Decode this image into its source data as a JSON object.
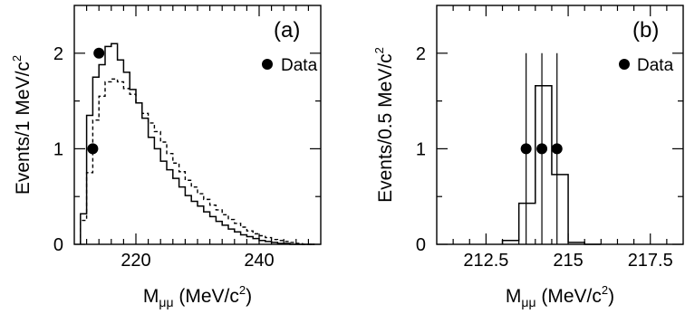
{
  "chart_data": [
    {
      "type": "histogram",
      "panel_label": "(a)",
      "xlabel_main": "M",
      "xlabel_sub": "μμ",
      "xlabel_unit": " (MeV/c",
      "xlabel_unit_sup": "2",
      "xlabel_close": ")",
      "ylabel_main": "Events/1 MeV/c",
      "ylabel_sup": "2",
      "xlim": [
        210,
        250
      ],
      "ylim": [
        0,
        2.5
      ],
      "xticks_major": [
        220,
        240
      ],
      "xticks_minor": [
        212,
        214,
        216,
        218,
        222,
        224,
        226,
        228,
        230,
        232,
        234,
        236,
        238,
        242,
        244,
        246,
        248
      ],
      "yticks_major": [
        0,
        1,
        2
      ],
      "yticks_minor": [
        0.5,
        1.5
      ],
      "legend": "Data",
      "bin_edges": [
        211,
        212,
        213,
        214,
        215,
        216,
        217,
        218,
        219,
        220,
        221,
        222,
        223,
        224,
        225,
        226,
        227,
        228,
        229,
        230,
        231,
        232,
        233,
        234,
        235,
        236,
        237,
        238,
        239,
        240,
        241,
        242,
        243,
        244,
        245,
        246,
        247,
        248,
        249
      ],
      "series": [
        {
          "style": "solid",
          "values": [
            0.32,
            1.35,
            1.75,
            1.88,
            2.07,
            2.1,
            1.93,
            1.8,
            1.62,
            1.48,
            1.32,
            1.12,
            1.0,
            0.87,
            0.78,
            0.69,
            0.6,
            0.51,
            0.45,
            0.4,
            0.34,
            0.29,
            0.24,
            0.2,
            0.16,
            0.13,
            0.1,
            0.08,
            0.06,
            0.04,
            0.03,
            0.02,
            0.01,
            0.01,
            0.0,
            0.0,
            0.0,
            0.0
          ]
        },
        {
          "style": "dashed",
          "values": [
            0.25,
            0.75,
            1.3,
            1.55,
            1.7,
            1.73,
            1.7,
            1.63,
            1.57,
            1.48,
            1.37,
            1.27,
            1.18,
            1.07,
            0.95,
            0.85,
            0.76,
            0.67,
            0.6,
            0.53,
            0.47,
            0.41,
            0.36,
            0.31,
            0.26,
            0.22,
            0.18,
            0.14,
            0.11,
            0.09,
            0.07,
            0.05,
            0.04,
            0.03,
            0.02,
            0.01,
            0.0,
            0.0
          ]
        }
      ],
      "data_points": [
        {
          "x": 213.0,
          "y": 1
        },
        {
          "x": 214.0,
          "y": 2
        }
      ]
    },
    {
      "type": "histogram",
      "panel_label": "(b)",
      "xlabel_main": "M",
      "xlabel_sub": "μμ",
      "xlabel_unit": " (MeV/c",
      "xlabel_unit_sup": "2",
      "xlabel_close": ")",
      "ylabel_main": "Events/0.5 MeV/c",
      "ylabel_sup": "2",
      "xlim": [
        211,
        218.5
      ],
      "ylim": [
        0,
        2.5
      ],
      "xticks_major": [
        212.5,
        215,
        217.5
      ],
      "xtick_labels": [
        "212.5",
        "215",
        "217.5"
      ],
      "xticks_minor": [
        211.5,
        212,
        213,
        213.5,
        214,
        214.5,
        215.5,
        216,
        216.5,
        217,
        218
      ],
      "yticks_major": [
        0,
        1,
        2
      ],
      "yticks_minor": [
        0.5,
        1.5
      ],
      "legend": "Data",
      "bin_edges": [
        213.0,
        213.5,
        214.0,
        214.5,
        215.0,
        215.5,
        216.0
      ],
      "series": [
        {
          "style": "solid",
          "values": [
            0.04,
            0.43,
            1.66,
            0.73,
            0.02,
            0.0
          ]
        }
      ],
      "data_points": [
        {
          "x": 213.72,
          "y": 1,
          "err_low": 1.0,
          "err_high": 1.0
        },
        {
          "x": 214.2,
          "y": 1,
          "err_low": 1.0,
          "err_high": 1.0
        },
        {
          "x": 214.66,
          "y": 1,
          "err_low": 1.0,
          "err_high": 1.0
        }
      ]
    }
  ]
}
